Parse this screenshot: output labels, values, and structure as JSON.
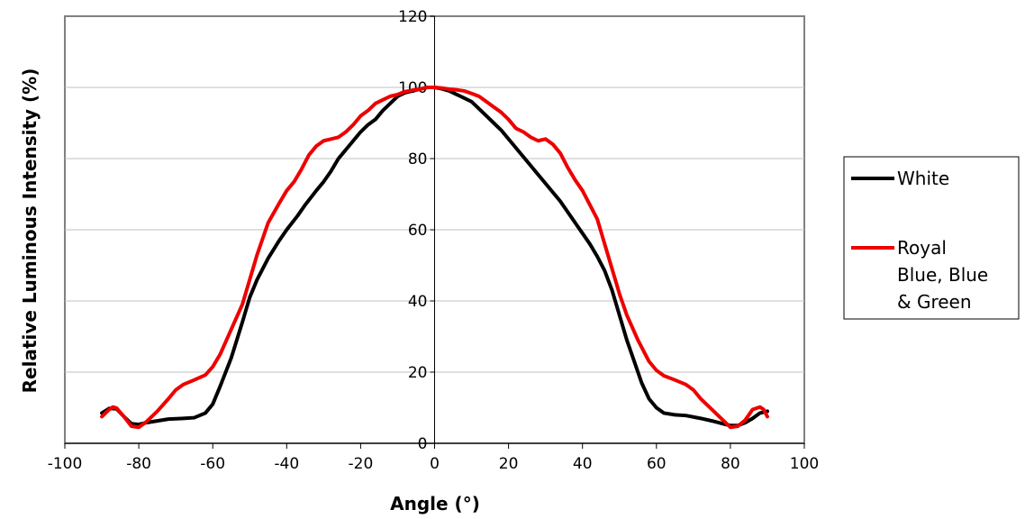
{
  "chart_data": {
    "type": "line",
    "title": "",
    "xlabel": "Angle (°)",
    "ylabel": "Relative Luminous Intensity (%)",
    "xlim": [
      -100,
      100
    ],
    "ylim": [
      0,
      120
    ],
    "x_ticks": [
      -100,
      -80,
      -60,
      -40,
      -20,
      0,
      20,
      40,
      60,
      80,
      100
    ],
    "y_ticks": [
      0,
      20,
      40,
      60,
      80,
      100,
      120
    ],
    "grid": "horizontal",
    "legend_position": "right",
    "series": [
      {
        "name": "White",
        "color": "#000000",
        "points": [
          [
            -90,
            8.5
          ],
          [
            -88,
            9.8
          ],
          [
            -86,
            9.7
          ],
          [
            -84,
            7.5
          ],
          [
            -82,
            5.5
          ],
          [
            -80,
            5.3
          ],
          [
            -78,
            5.8
          ],
          [
            -75,
            6.3
          ],
          [
            -72,
            6.8
          ],
          [
            -68,
            7.0
          ],
          [
            -65,
            7.2
          ],
          [
            -62,
            8.5
          ],
          [
            -60,
            11
          ],
          [
            -58,
            16
          ],
          [
            -55,
            24
          ],
          [
            -52,
            34
          ],
          [
            -50,
            41
          ],
          [
            -48,
            46
          ],
          [
            -45,
            52
          ],
          [
            -42,
            57
          ],
          [
            -40,
            60
          ],
          [
            -37,
            64
          ],
          [
            -35,
            67
          ],
          [
            -32,
            71
          ],
          [
            -30,
            73.5
          ],
          [
            -28,
            76.5
          ],
          [
            -26,
            80
          ],
          [
            -24,
            82.5
          ],
          [
            -22,
            85
          ],
          [
            -20,
            87.5
          ],
          [
            -18,
            89.5
          ],
          [
            -16,
            91
          ],
          [
            -14,
            93.5
          ],
          [
            -12,
            95.5
          ],
          [
            -10,
            97.5
          ],
          [
            -8,
            98.5
          ],
          [
            -6,
            99
          ],
          [
            -4,
            99.5
          ],
          [
            -2,
            100
          ],
          [
            0,
            100
          ],
          [
            2,
            99.6
          ],
          [
            4,
            99
          ],
          [
            6,
            98
          ],
          [
            8,
            97
          ],
          [
            10,
            96
          ],
          [
            12,
            94
          ],
          [
            14,
            92
          ],
          [
            16,
            90
          ],
          [
            18,
            88
          ],
          [
            20,
            85.5
          ],
          [
            22,
            83
          ],
          [
            24,
            80.5
          ],
          [
            26,
            78
          ],
          [
            28,
            75.5
          ],
          [
            30,
            73
          ],
          [
            32,
            70.5
          ],
          [
            34,
            68
          ],
          [
            36,
            65
          ],
          [
            38,
            62
          ],
          [
            40,
            59
          ],
          [
            42,
            56
          ],
          [
            44,
            52.5
          ],
          [
            46,
            48.5
          ],
          [
            48,
            43
          ],
          [
            50,
            36
          ],
          [
            52,
            29
          ],
          [
            54,
            23
          ],
          [
            56,
            17
          ],
          [
            58,
            12.5
          ],
          [
            60,
            10
          ],
          [
            62,
            8.5
          ],
          [
            65,
            8.0
          ],
          [
            68,
            7.8
          ],
          [
            72,
            7.0
          ],
          [
            75,
            6.3
          ],
          [
            78,
            5.5
          ],
          [
            80,
            5.0
          ],
          [
            82,
            5.0
          ],
          [
            84,
            5.8
          ],
          [
            86,
            7.0
          ],
          [
            88,
            8.5
          ],
          [
            90,
            9.0
          ]
        ]
      },
      {
        "name": "Royal Blue, Blue & Green",
        "color": "#ee0000",
        "points": [
          [
            -90,
            7.5
          ],
          [
            -88,
            9.5
          ],
          [
            -87,
            10.2
          ],
          [
            -86,
            9.9
          ],
          [
            -84,
            7.5
          ],
          [
            -82,
            4.8
          ],
          [
            -80,
            4.5
          ],
          [
            -78,
            6.0
          ],
          [
            -75,
            9.0
          ],
          [
            -72,
            12.5
          ],
          [
            -70,
            15
          ],
          [
            -68,
            16.5
          ],
          [
            -65,
            17.8
          ],
          [
            -62,
            19.2
          ],
          [
            -60,
            21.5
          ],
          [
            -58,
            25
          ],
          [
            -55,
            32
          ],
          [
            -52,
            39
          ],
          [
            -50,
            46
          ],
          [
            -48,
            53
          ],
          [
            -45,
            62
          ],
          [
            -42,
            67.5
          ],
          [
            -40,
            71
          ],
          [
            -38,
            73.5
          ],
          [
            -36,
            77
          ],
          [
            -34,
            81
          ],
          [
            -32,
            83.5
          ],
          [
            -30,
            85
          ],
          [
            -28,
            85.5
          ],
          [
            -26,
            86
          ],
          [
            -24,
            87.5
          ],
          [
            -22,
            89.5
          ],
          [
            -20,
            92
          ],
          [
            -18,
            93.5
          ],
          [
            -16,
            95.5
          ],
          [
            -14,
            96.5
          ],
          [
            -12,
            97.5
          ],
          [
            -10,
            98
          ],
          [
            -8,
            98.8
          ],
          [
            -6,
            99.2
          ],
          [
            -4,
            99.5
          ],
          [
            -2,
            100
          ],
          [
            0,
            100
          ],
          [
            2,
            99.8
          ],
          [
            4,
            99.5
          ],
          [
            6,
            99.3
          ],
          [
            8,
            99
          ],
          [
            10,
            98.3
          ],
          [
            12,
            97.5
          ],
          [
            14,
            96
          ],
          [
            16,
            94.5
          ],
          [
            18,
            93
          ],
          [
            20,
            91
          ],
          [
            22,
            88.5
          ],
          [
            24,
            87.5
          ],
          [
            26,
            86
          ],
          [
            28,
            85
          ],
          [
            30,
            85.5
          ],
          [
            32,
            84
          ],
          [
            34,
            81.5
          ],
          [
            36,
            77.5
          ],
          [
            38,
            74
          ],
          [
            40,
            71
          ],
          [
            42,
            67
          ],
          [
            44,
            63
          ],
          [
            46,
            56
          ],
          [
            48,
            49
          ],
          [
            50,
            42
          ],
          [
            52,
            36
          ],
          [
            55,
            29
          ],
          [
            58,
            23
          ],
          [
            60,
            20.5
          ],
          [
            62,
            19
          ],
          [
            65,
            17.8
          ],
          [
            68,
            16.5
          ],
          [
            70,
            15
          ],
          [
            72,
            12.5
          ],
          [
            75,
            9.5
          ],
          [
            78,
            6.5
          ],
          [
            80,
            4.5
          ],
          [
            82,
            4.8
          ],
          [
            84,
            6.5
          ],
          [
            86,
            9.5
          ],
          [
            88,
            10.2
          ],
          [
            89,
            9.5
          ],
          [
            90,
            7.5
          ]
        ]
      }
    ]
  }
}
